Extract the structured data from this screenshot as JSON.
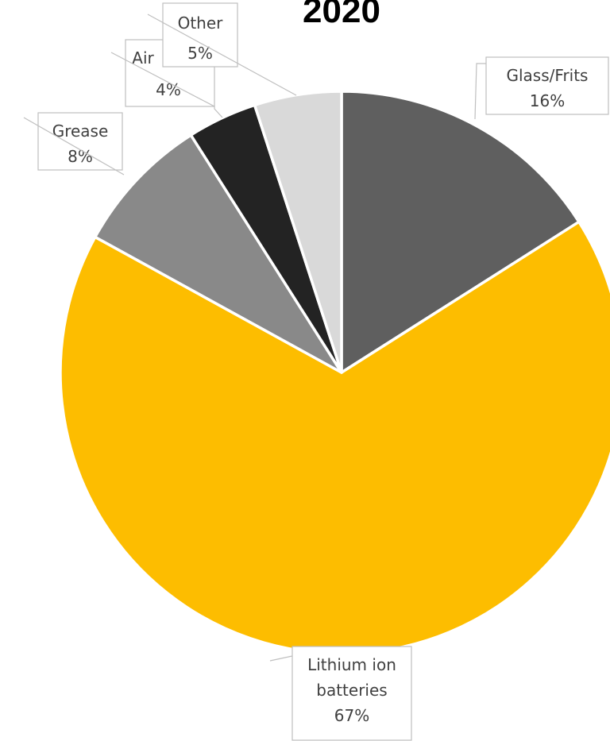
{
  "chart_data": {
    "type": "pie",
    "title": "2020",
    "slices": [
      {
        "label": "Glass/Frits",
        "value_label": "16%",
        "value": 16,
        "color": "#5f5f5f"
      },
      {
        "label": "Lithium ion batteries",
        "value_label": "67%",
        "value": 67,
        "color": "#fdbd00"
      },
      {
        "label": "Grease",
        "value_label": "8%",
        "value": 8,
        "color": "#898989"
      },
      {
        "label": "Air",
        "value_label": "4%",
        "value": 4,
        "color": "#232323"
      },
      {
        "label": "Other",
        "value_label": "5%",
        "value": 5,
        "color": "#d9d9d9"
      }
    ],
    "start_angle_deg": 0,
    "direction": "clockwise",
    "legend": "none"
  }
}
